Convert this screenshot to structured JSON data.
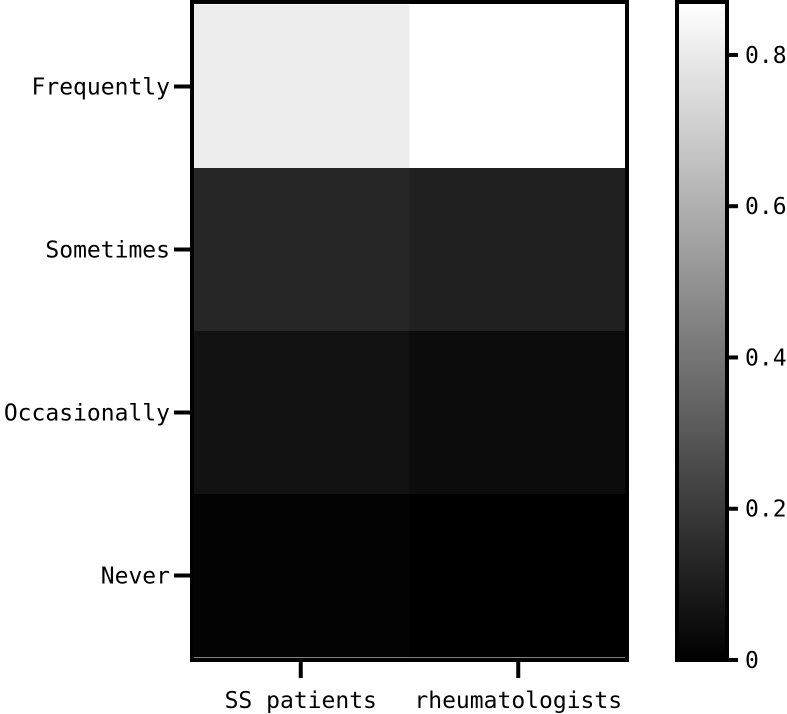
{
  "chart_data": {
    "type": "heatmap",
    "title": "",
    "xlabel": "",
    "ylabel": "",
    "x_categories": [
      "SS patients",
      "rheumatologists"
    ],
    "y_categories": [
      "Frequently",
      "Sometimes",
      "Occasionally",
      "Never"
    ],
    "values": [
      [
        0.81,
        0.87
      ],
      [
        0.13,
        0.11
      ],
      [
        0.06,
        0.04
      ],
      [
        0.01,
        0.0
      ]
    ],
    "colorbar": {
      "range": [
        0,
        0.87
      ],
      "ticks": [
        "0",
        "0.2",
        "0.4",
        "0.6",
        "0.8"
      ],
      "tick_values": [
        0,
        0.2,
        0.4,
        0.6,
        0.8
      ],
      "colors": [
        "#000000",
        "#ffffff"
      ]
    }
  }
}
